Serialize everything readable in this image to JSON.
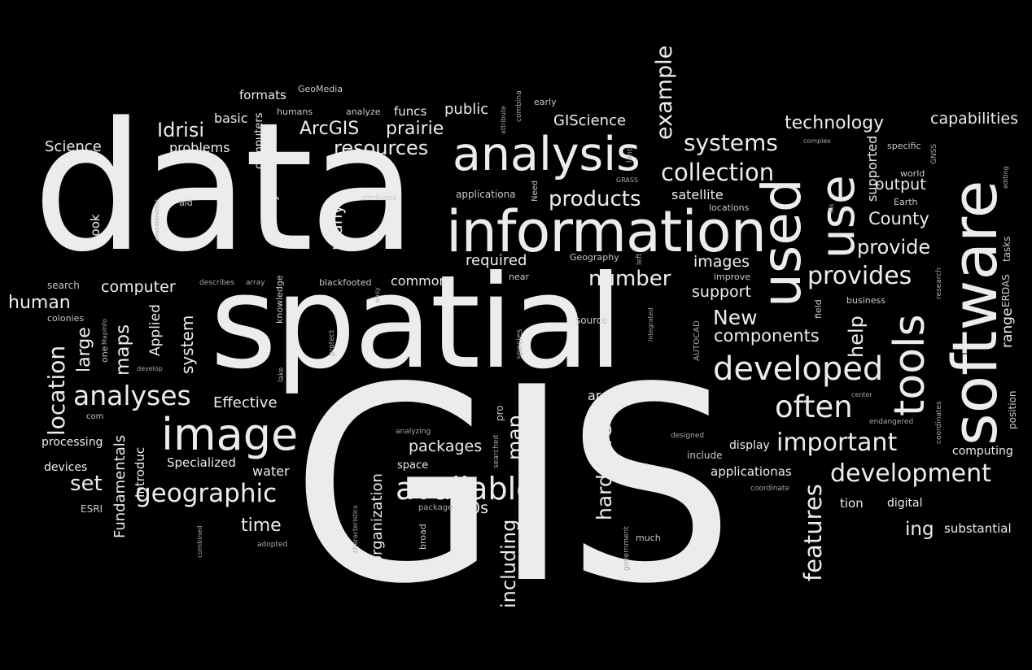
{
  "cloud": {
    "background": "#000000",
    "text_color": "#ececec",
    "words": [
      "GIS",
      "data",
      "spatial",
      "information",
      "analysis",
      "software",
      "used",
      "use",
      "tools",
      "image",
      "example",
      "GeoMedia",
      "formats",
      "humans",
      "analyze",
      "funcs",
      "public",
      "combina",
      "attribute",
      "early",
      "Idrisi",
      "basic",
      "computers",
      "ArcGIS",
      "prairie",
      "GIScience",
      "technology",
      "capabilities",
      "Science",
      "problems",
      "resources",
      "systems",
      "complex",
      "supported",
      "specific",
      "GNSS",
      "collection",
      "products",
      "applicationa",
      "GRASS",
      "land",
      "Need",
      "satellite",
      "world",
      "output",
      "Earth",
      "editing",
      "book",
      "environmental",
      "aid",
      "attributes",
      "entry",
      "many",
      "locations",
      "dis",
      "County",
      "provide",
      "required",
      "Geography",
      "left",
      "images",
      "provides",
      "search",
      "computer",
      "describes",
      "array",
      "blackfooted",
      "common",
      "near",
      "improve",
      "number",
      "support",
      "human",
      "easy",
      "knowledge",
      "research",
      "business",
      "colonies",
      "MapInfo",
      "one",
      "large",
      "maps",
      "Applied",
      "system",
      "source",
      "AUTOCAD",
      "integrated",
      "New",
      "field",
      "components",
      "help",
      "range",
      "ERDAS",
      "tasks",
      "location",
      "develop",
      "lake",
      "protect",
      "species",
      "developed",
      "analyses",
      "Effective",
      "areas",
      "pro",
      "often",
      "center",
      "coordinates",
      "position",
      "com",
      "endangered",
      "processing",
      "analyzing",
      "packages",
      "searched",
      "map",
      "designed",
      "include",
      "display",
      "important",
      "computing",
      "devices",
      "Fundamentals",
      "Introduc",
      "Specialized",
      "space",
      "water",
      "geographic",
      "characteristics",
      "hardware",
      "applicationas",
      "development",
      "set",
      "available",
      "ESRI",
      "package",
      "0s",
      "coordinate",
      "tion",
      "digital",
      "organization",
      "broad",
      "including",
      "time",
      "combined",
      "adopted",
      "features",
      "government",
      "much",
      "ing",
      "substantial"
    ]
  }
}
